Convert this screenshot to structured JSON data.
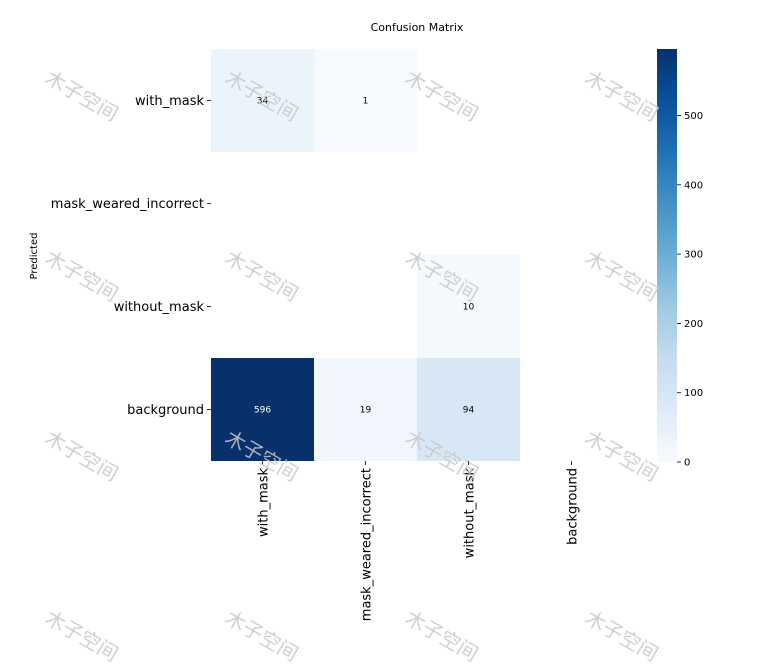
{
  "watermark": "木子空间",
  "chart_data": {
    "type": "heatmap",
    "title": "Confusion Matrix",
    "ylabel": "Predicted",
    "xlabel": "",
    "row_labels": [
      "with_mask",
      "mask_weared_incorrect",
      "without_mask",
      "background"
    ],
    "col_labels": [
      "with_mask",
      "mask_weared_incorrect",
      "without_mask",
      "background"
    ],
    "values": [
      [
        34,
        1,
        null,
        null
      ],
      [
        null,
        null,
        null,
        null
      ],
      [
        null,
        null,
        10,
        null
      ],
      [
        596,
        19,
        94,
        null
      ]
    ],
    "colorbar": {
      "min": 0,
      "max": 596,
      "ticks": [
        0,
        100,
        200,
        300,
        400,
        500
      ]
    },
    "colormap": "Blues",
    "empty_cells": "blank"
  }
}
